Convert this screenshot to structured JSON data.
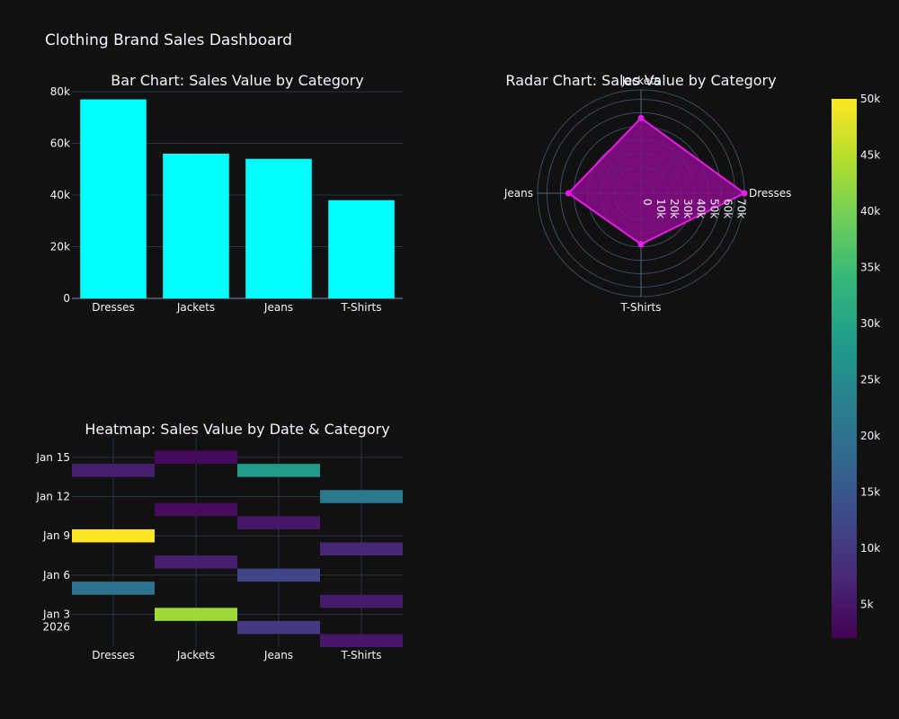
{
  "dashboard": {
    "title": "Clothing Brand Sales Dashboard"
  },
  "colors": {
    "background": "#111111",
    "bar": "#00ffff",
    "radar_line": "#e81ce8",
    "radar_fill": "#8a0a8a",
    "grid": "#283442",
    "text": "#f2f5fa"
  },
  "chart_data": [
    {
      "type": "bar",
      "title": "Bar Chart: Sales Value by Category",
      "categories": [
        "Dresses",
        "Jackets",
        "Jeans",
        "T-Shirts"
      ],
      "values": [
        77000,
        56000,
        54000,
        38000
      ],
      "ylim": [
        0,
        80000
      ],
      "yticks": [
        0,
        20000,
        40000,
        60000,
        80000
      ],
      "ytick_labels": [
        "0",
        "20k",
        "40k",
        "60k",
        "80k"
      ],
      "xlabel": "",
      "ylabel": "",
      "grid": true
    },
    {
      "type": "radar",
      "title": "Radar Chart: Sales Value by Category",
      "categories": [
        "Dresses",
        "Jackets",
        "Jeans",
        "T-Shirts"
      ],
      "values": [
        77000,
        56000,
        54000,
        38000
      ],
      "angles_deg": [
        0,
        90,
        180,
        270
      ],
      "radial_range": [
        0,
        77000
      ],
      "radial_ticks": [
        0,
        10000,
        20000,
        30000,
        40000,
        50000,
        60000,
        70000
      ],
      "radial_tick_labels": [
        "0",
        "10k",
        "20k",
        "30k",
        "40k",
        "50k",
        "60k",
        "70k"
      ]
    },
    {
      "type": "heatmap",
      "title": "Heatmap: Sales Value by Date & Category",
      "categories": [
        "Dresses",
        "Jackets",
        "Jeans",
        "T-Shirts"
      ],
      "y_tick_labels": [
        {
          "date": "2026-01-03",
          "lines": [
            "Jan 3",
            "2026"
          ]
        },
        {
          "date": "2026-01-06",
          "lines": [
            "Jan 6"
          ]
        },
        {
          "date": "2026-01-09",
          "lines": [
            "Jan 9"
          ]
        },
        {
          "date": "2026-01-12",
          "lines": [
            "Jan 12"
          ]
        },
        {
          "date": "2026-01-15",
          "lines": [
            "Jan 15"
          ]
        }
      ],
      "y_range": [
        "2026-01-01",
        "2026-01-16"
      ],
      "cells": [
        {
          "category": "Dresses",
          "date": "2026-01-05",
          "value": 20000
        },
        {
          "category": "Dresses",
          "date": "2026-01-09",
          "value": 50000
        },
        {
          "category": "Dresses",
          "date": "2026-01-14",
          "value": 6000
        },
        {
          "category": "Jackets",
          "date": "2026-01-03",
          "value": 43000
        },
        {
          "category": "Jackets",
          "date": "2026-01-07",
          "value": 6000
        },
        {
          "category": "Jackets",
          "date": "2026-01-11",
          "value": 3500
        },
        {
          "category": "Jackets",
          "date": "2026-01-15",
          "value": 3000
        },
        {
          "category": "Jeans",
          "date": "2026-01-02",
          "value": 10000
        },
        {
          "category": "Jeans",
          "date": "2026-01-06",
          "value": 12000
        },
        {
          "category": "Jeans",
          "date": "2026-01-10",
          "value": 5000
        },
        {
          "category": "Jeans",
          "date": "2026-01-14",
          "value": 28000
        },
        {
          "category": "T-Shirts",
          "date": "2026-01-01",
          "value": 5000
        },
        {
          "category": "T-Shirts",
          "date": "2026-01-04",
          "value": 5500
        },
        {
          "category": "T-Shirts",
          "date": "2026-01-08",
          "value": 7000
        },
        {
          "category": "T-Shirts",
          "date": "2026-01-12",
          "value": 21000
        }
      ],
      "colorscale": "Viridis",
      "zlim": [
        2000,
        50000
      ],
      "colorbar_ticks": [
        5000,
        10000,
        15000,
        20000,
        25000,
        30000,
        35000,
        40000,
        45000,
        50000
      ],
      "colorbar_tick_labels": [
        "5k",
        "10k",
        "15k",
        "20k",
        "25k",
        "30k",
        "35k",
        "40k",
        "45k",
        "50k"
      ]
    }
  ]
}
